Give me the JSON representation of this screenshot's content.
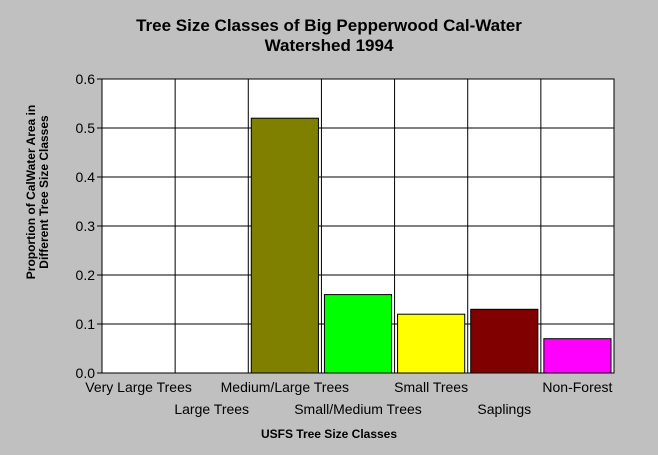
{
  "chart_data": {
    "type": "bar",
    "title_lines": [
      "Tree Size Classes of Big Pepperwood Cal-Water",
      "Watershed 1994"
    ],
    "xlabel": "USFS Tree Size Classes",
    "ylabel_lines": [
      "Proportion of CalWater Area in",
      "Different Tree Size Classes"
    ],
    "categories": [
      "Very Large Trees",
      "Large Trees",
      "Medium/Large Trees",
      "Small/Medium Trees",
      "Small Trees",
      "Saplings",
      "Non-Forest"
    ],
    "values": [
      0,
      0,
      0.52,
      0.16,
      0.12,
      0.13,
      0.07
    ],
    "bar_colors": [
      "#808000",
      "#808000",
      "#808000",
      "#00ff00",
      "#ffff00",
      "#800000",
      "#ff00ff"
    ],
    "ylim": [
      0,
      0.6
    ],
    "yticks": [
      "0.0",
      "0.1",
      "0.2",
      "0.3",
      "0.4",
      "0.5",
      "0.6"
    ],
    "grid": true,
    "plot_background": "#ffffff",
    "page_background": "#c0c0c0"
  }
}
